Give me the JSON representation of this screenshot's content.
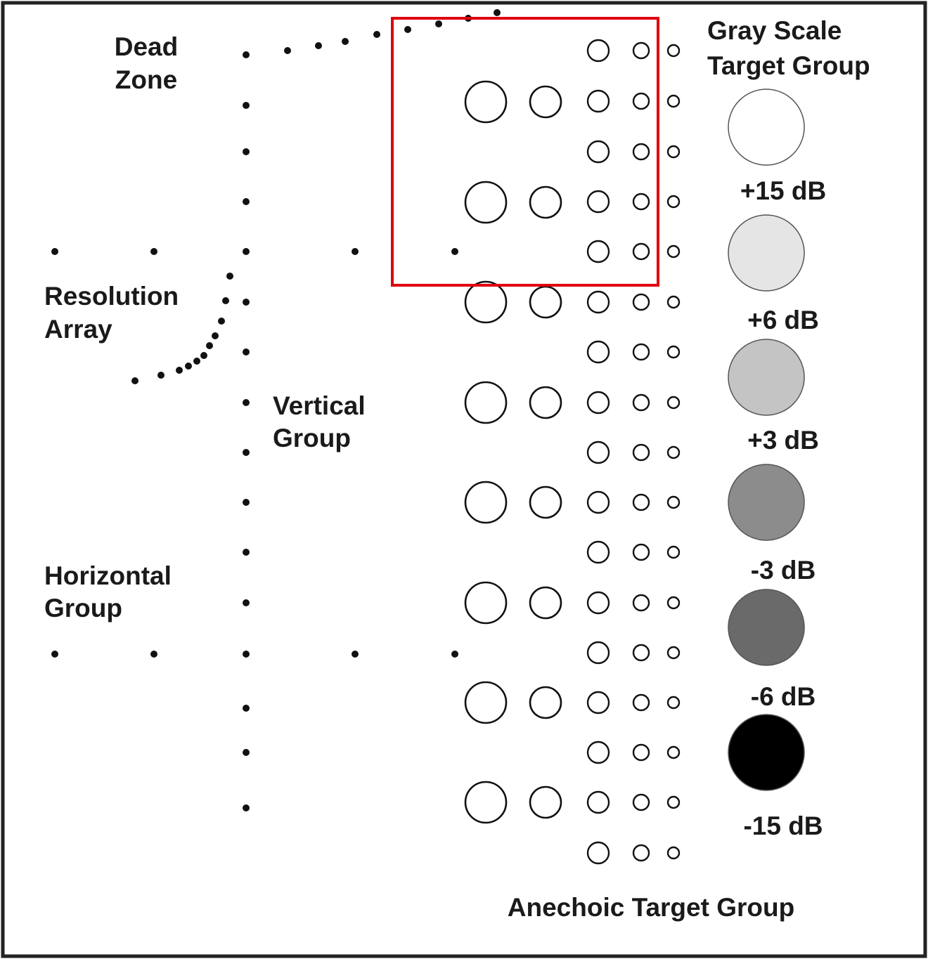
{
  "labels": {
    "dead_zone": [
      "Dead",
      "Zone"
    ],
    "resolution_array": [
      "Resolution",
      "Array"
    ],
    "vertical_group": [
      "Vertical",
      "Group"
    ],
    "horizontal_group": [
      "Horizontal",
      "Group"
    ],
    "gray_scale": [
      "Gray Scale",
      "Target Group"
    ],
    "anechoic": "Anechoic Target Group"
  },
  "gray_scale_targets": [
    {
      "label": "+15 dB",
      "fill": "#ffffff"
    },
    {
      "label": "+6 dB",
      "fill": "#e5e5e5"
    },
    {
      "label": "+3 dB",
      "fill": "#c4c4c4"
    },
    {
      "label": "-3 dB",
      "fill": "#8c8c8c"
    },
    {
      "label": "-6 dB",
      "fill": "#6a6a6a"
    },
    {
      "label": "-15 dB",
      "fill": "#000000"
    }
  ],
  "colors": {
    "frame": "#222222",
    "highlight_box": "#e0000f",
    "ink": "#111111"
  }
}
